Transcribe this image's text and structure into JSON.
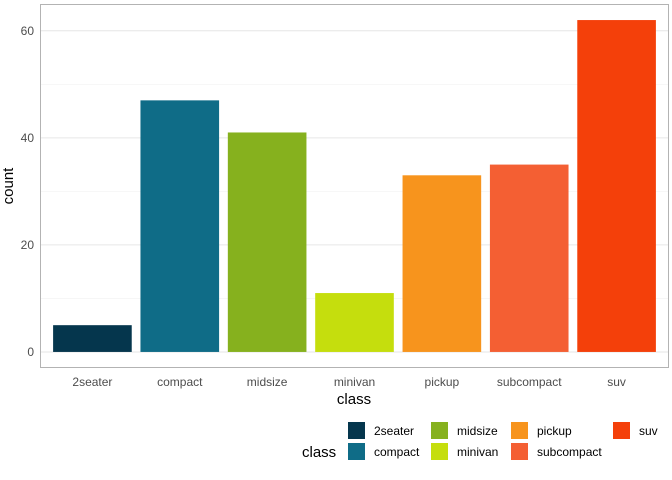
{
  "chart_data": {
    "type": "bar",
    "categories": [
      "2seater",
      "compact",
      "midsize",
      "minivan",
      "pickup",
      "subcompact",
      "suv"
    ],
    "values": [
      5,
      47,
      41,
      11,
      33,
      35,
      62
    ],
    "colors": [
      "#05364D",
      "#0F6C87",
      "#86B11E",
      "#C5DE0D",
      "#F7941D",
      "#F45F33",
      "#F4400A"
    ],
    "xlabel": "class",
    "ylabel": "count",
    "ylim": [
      -3,
      65
    ],
    "yticks": [
      0,
      20,
      40,
      60
    ],
    "grid": true,
    "legend": {
      "title": "class",
      "placement": "bottom",
      "entries": [
        "2seater",
        "compact",
        "midsize",
        "minivan",
        "pickup",
        "subcompact",
        "suv"
      ]
    }
  }
}
